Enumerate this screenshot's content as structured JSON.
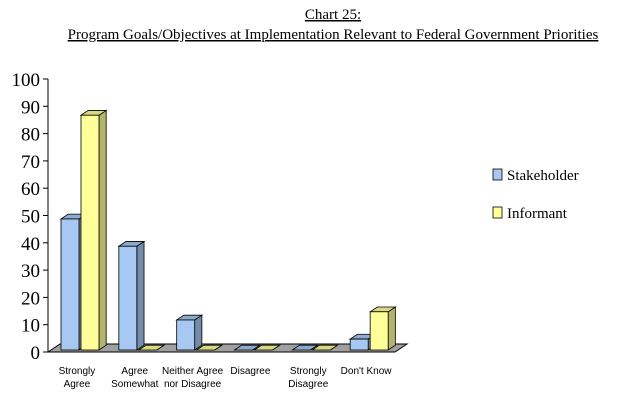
{
  "chart_data": {
    "type": "bar3d",
    "title": "Chart 25:",
    "subtitle": "Program Goals/Objectives at Implementation Relevant to Federal Government Priorities",
    "categories": [
      "Strongly Agree",
      "Agree Somewhat",
      "Neither Agree nor Disagree",
      "Disagree",
      "Strongly Disagree",
      "Don't Know"
    ],
    "series": [
      {
        "name": "Stakeholder",
        "color": "#a6c8f2",
        "values": [
          48,
          38,
          11,
          0,
          0,
          4
        ]
      },
      {
        "name": "Informant",
        "color": "#ffff99",
        "values": [
          86,
          0,
          0,
          0,
          0,
          14
        ]
      }
    ],
    "ylim": [
      0,
      100
    ],
    "yticks": [
      0,
      10,
      20,
      30,
      40,
      50,
      60,
      70,
      80,
      90,
      100
    ],
    "legend": "right"
  }
}
